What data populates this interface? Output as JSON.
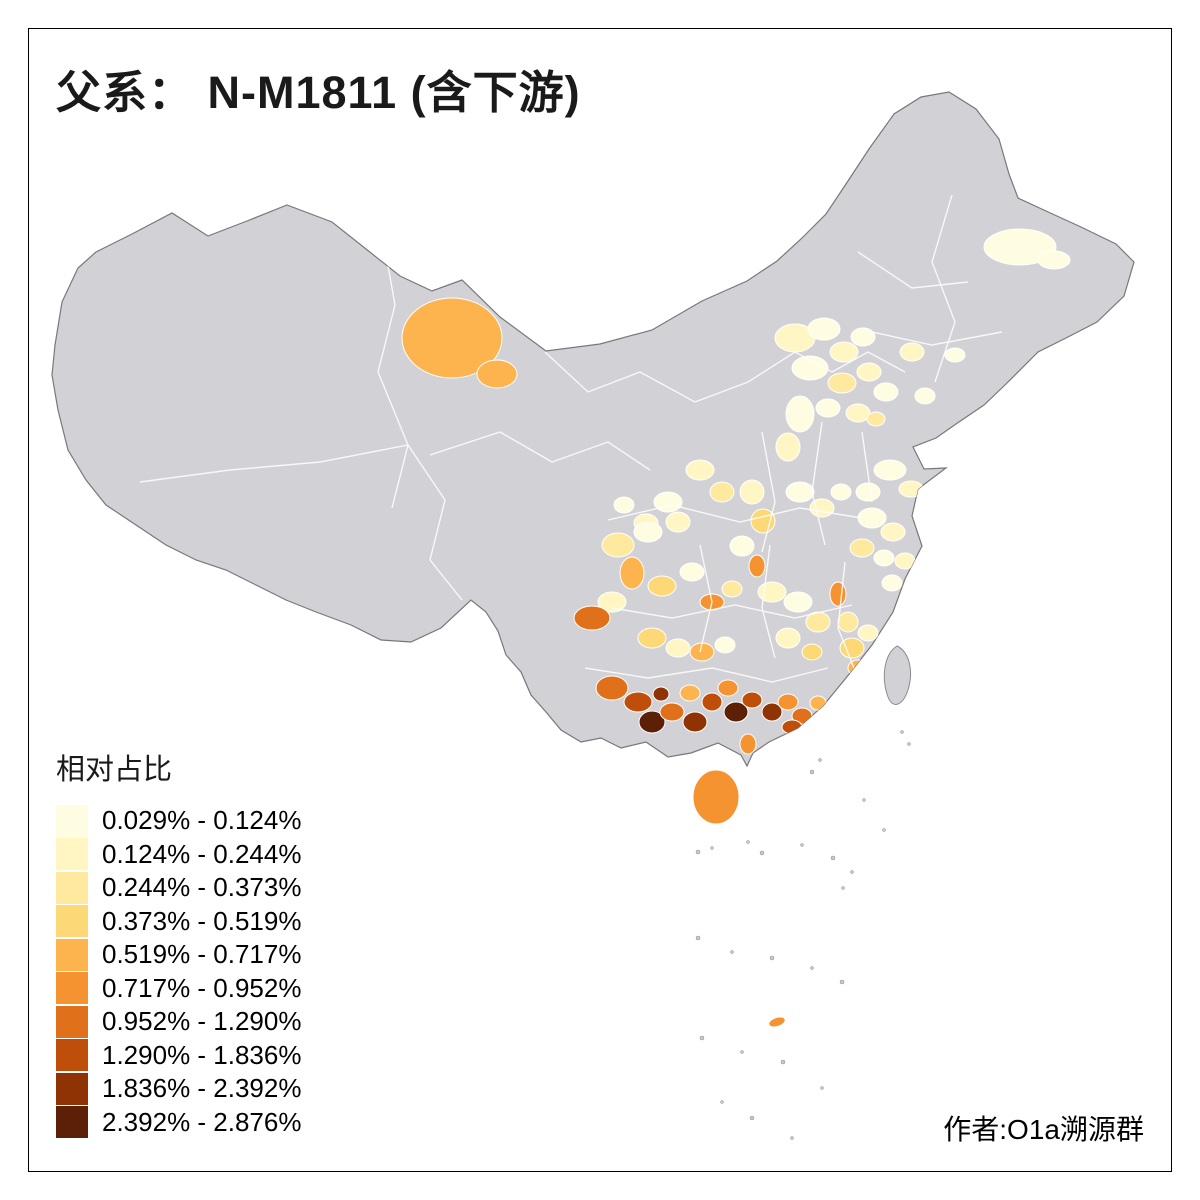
{
  "title": "父系： N-M1811 (含下游)",
  "legend": {
    "title": "相对占比",
    "items": [
      {
        "label": "0.029% - 0.124%",
        "color": "#FFFDE1"
      },
      {
        "label": "0.124% - 0.244%",
        "color": "#FFF6C3"
      },
      {
        "label": "0.244% - 0.373%",
        "color": "#FEE99F"
      },
      {
        "label": "0.373% - 0.519%",
        "color": "#FDD877"
      },
      {
        "label": "0.519% - 0.717%",
        "color": "#FDB44E"
      },
      {
        "label": "0.717% - 0.952%",
        "color": "#F59331"
      },
      {
        "label": "0.952% - 1.290%",
        "color": "#E0701A"
      },
      {
        "label": "1.290% - 1.836%",
        "color": "#BF4E0A"
      },
      {
        "label": "1.836% - 2.392%",
        "color": "#8F3305"
      },
      {
        "label": "2.392% - 2.876%",
        "color": "#5C2006"
      }
    ]
  },
  "attribution": "作者:O1a溯源群",
  "map": {
    "base_fill": "#D2D2D6",
    "outline_color": "#77777D",
    "border_color": "#FFFFFF"
  },
  "chart_data": {
    "type": "heatmap",
    "subtype": "choropleth-map",
    "measure": "相对占比",
    "bins": [
      "0.029% - 0.124%",
      "0.124% - 0.244%",
      "0.244% - 0.373%",
      "0.373% - 0.519%",
      "0.519% - 0.717%",
      "0.717% - 0.952%",
      "0.952% - 1.290%",
      "1.290% - 1.836%",
      "1.836% - 2.392%",
      "2.392% - 2.876%"
    ],
    "palette": [
      "#FFFDE1",
      "#FFF6C3",
      "#FEE99F",
      "#FDD877",
      "#FDB44E",
      "#F59331",
      "#E0701A",
      "#BF4E0A",
      "#8F3305",
      "#5C2006"
    ],
    "value_range": [
      0.029,
      2.876
    ],
    "legend_position": "bottom-left"
  }
}
